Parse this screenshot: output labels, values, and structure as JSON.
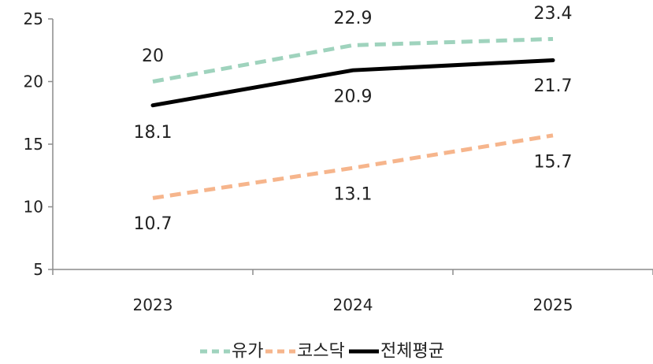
{
  "chart_data": {
    "type": "line",
    "categories": [
      "2023",
      "2024",
      "2025"
    ],
    "ylim": [
      5,
      25
    ],
    "yticks": [
      "5",
      "10",
      "15",
      "20",
      "25"
    ],
    "grid": false,
    "legend_position": "bottom",
    "series": [
      {
        "name": "유가",
        "values": [
          20,
          22.9,
          23.4
        ],
        "labels": [
          "20",
          "22.9",
          "23.4"
        ],
        "color": "#9fd3bd",
        "style": "dashed"
      },
      {
        "name": "코스닥",
        "values": [
          10.7,
          13.1,
          15.7
        ],
        "labels": [
          "10.7",
          "13.1",
          "15.7"
        ],
        "color": "#f6b58c",
        "style": "dashed"
      },
      {
        "name": "전체평균",
        "values": [
          18.1,
          20.9,
          21.7
        ],
        "labels": [
          "18.1",
          "20.9",
          "21.7"
        ],
        "color": "#000000",
        "style": "solid"
      }
    ]
  }
}
